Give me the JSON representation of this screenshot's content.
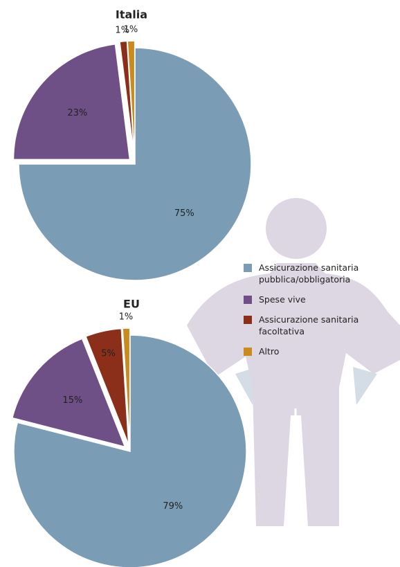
{
  "chart_data": [
    {
      "type": "pie",
      "title": "Italia",
      "categories": [
        "Assicurazione sanitaria pubblica/obbligatoria",
        "Spese vive",
        "Assicurazione sanitaria facoltativa",
        "Altro"
      ],
      "values": [
        75,
        23,
        1,
        1
      ],
      "value_labels": [
        "75%",
        "23%",
        "1%",
        "1%"
      ],
      "colors": [
        "#7a9db5",
        "#6e4f86",
        "#8b2e1a",
        "#c98a1e"
      ]
    },
    {
      "type": "pie",
      "title": "EU",
      "values": [
        79,
        15,
        5,
        1
      ],
      "value_labels": [
        "79%",
        "15%",
        "5%",
        "1%"
      ],
      "colors": [
        "#7a9db5",
        "#6e4f86",
        "#8b2e1a",
        "#c98a1e"
      ]
    }
  ]
}
